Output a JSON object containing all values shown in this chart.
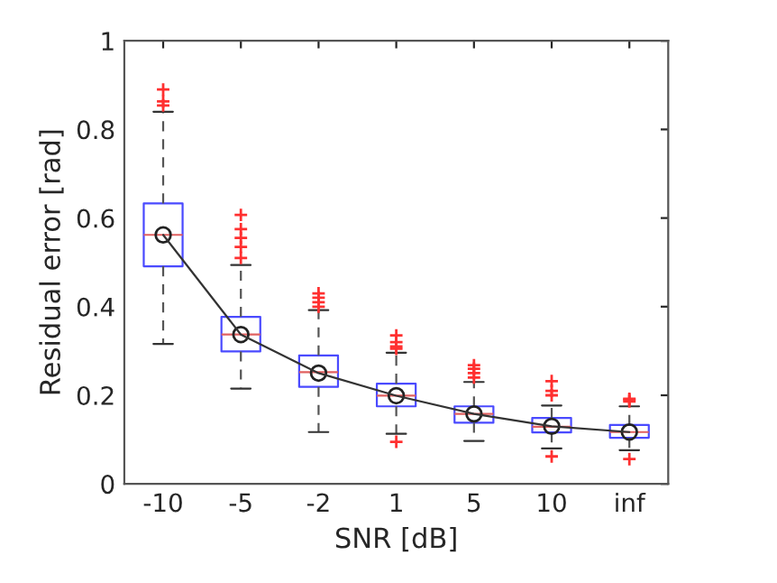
{
  "chart_data": {
    "type": "box",
    "xlabel": "SNR [dB]",
    "ylabel": "Residual error [rad]",
    "categories": [
      "-10",
      "-5",
      "-2",
      "1",
      "5",
      "10",
      "inf"
    ],
    "ylim": [
      0,
      1
    ],
    "yticks": [
      0,
      0.2,
      0.4,
      0.6,
      0.8,
      1
    ],
    "grid": false,
    "legend": false,
    "series": [
      {
        "type": "box",
        "color": "#4a4aff",
        "boxes": [
          {
            "low": 0.316,
            "q1": 0.491,
            "median": 0.562,
            "q3": 0.633,
            "high": 0.84,
            "mean": 0.562,
            "outliers": [
              0.89,
              0.863,
              0.854
            ]
          },
          {
            "low": 0.215,
            "q1": 0.299,
            "median": 0.337,
            "q3": 0.377,
            "high": 0.494,
            "mean": 0.337,
            "outliers": [
              0.607,
              0.575,
              0.555,
              0.535,
              0.51
            ]
          },
          {
            "low": 0.117,
            "q1": 0.219,
            "median": 0.252,
            "q3": 0.29,
            "high": 0.392,
            "mean": 0.25,
            "outliers": [
              0.43,
              0.42,
              0.41,
              0.4
            ]
          },
          {
            "low": 0.113,
            "q1": 0.175,
            "median": 0.199,
            "q3": 0.226,
            "high": 0.296,
            "mean": 0.199,
            "outliers": [
              0.335,
              0.32,
              0.31,
              0.305,
              0.095
            ]
          },
          {
            "low": 0.097,
            "q1": 0.138,
            "median": 0.158,
            "q3": 0.175,
            "high": 0.23,
            "mean": 0.158,
            "outliers": [
              0.268,
              0.26,
              0.25,
              0.24
            ]
          },
          {
            "low": 0.08,
            "q1": 0.116,
            "median": 0.129,
            "q3": 0.149,
            "high": 0.177,
            "mean": 0.13,
            "outliers": [
              0.232,
              0.21,
              0.2,
              0.062
            ]
          },
          {
            "low": 0.076,
            "q1": 0.104,
            "median": 0.117,
            "q3": 0.133,
            "high": 0.175,
            "mean": 0.117,
            "outliers": [
              0.192,
              0.19,
              0.186,
              0.056
            ]
          }
        ]
      },
      {
        "type": "line",
        "color": "#333333",
        "values": [
          0.562,
          0.337,
          0.25,
          0.199,
          0.158,
          0.13,
          0.117
        ]
      }
    ]
  }
}
